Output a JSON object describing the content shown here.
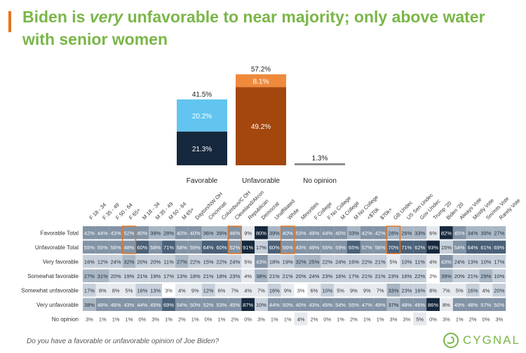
{
  "title": {
    "part1": "Biden is ",
    "emph": "very",
    "part2": " unfavorable to near majority; only above water with senior women"
  },
  "chart_data": [
    {
      "type": "bar",
      "stacked": true,
      "categories": [
        "Favorable",
        "Unfavorable",
        "No opinion"
      ],
      "totals": [
        "41.5%",
        "57.2%",
        "1.3%"
      ],
      "total_values": [
        41.5,
        57.2,
        1.3
      ],
      "segments": [
        [
          {
            "label": "21.3%",
            "value": 21.3,
            "color": "#16283d"
          },
          {
            "label": "20.2%",
            "value": 20.2,
            "color": "#62c5ef"
          }
        ],
        [
          {
            "label": "49.2%",
            "value": 49.2,
            "color": "#a3470e"
          },
          {
            "label": "8.1%",
            "value": 8.1,
            "color": "#ef8a3c"
          }
        ],
        [
          {
            "label": "",
            "value": 1.3,
            "color": "#8c8c8c"
          }
        ]
      ],
      "ylim": [
        0,
        60
      ]
    },
    {
      "type": "table",
      "columns": [
        "F 18 - 34",
        "F 35 - 49",
        "F 50 - 64",
        "F 65+",
        "M 18 - 34",
        "M 35 - 49",
        "M 50 - 64",
        "M 65+",
        "Dayton/NW OH",
        "Cincinnati",
        "Columbus/C OH",
        "Cleveland/Akron",
        "Republican",
        "Democrat",
        "Unaffiliated",
        "White",
        "Minorities",
        "F College",
        "F No College",
        "M College",
        "M No College",
        "<$70k",
        "$70k+",
        "GB Undec",
        "US Sen Undec",
        "Gov Undec",
        "Trump '20",
        "Biden '20",
        "Always Vote",
        "Mostly Vote",
        "Sm/mts Vote",
        "Rarely Vote"
      ],
      "rows": [
        {
          "label": "Favorable Total",
          "values": [
            42,
            44,
            43,
            52,
            40,
            39,
            28,
            40,
            40,
            36,
            39,
            46,
            9,
            80,
            39,
            40,
            53,
            49,
            44,
            40,
            33,
            42,
            42,
            28,
            26,
            33,
            6,
            82,
            45,
            34,
            39,
            27
          ]
        },
        {
          "label": "Unfavorable Total",
          "values": [
            55,
            55,
            56,
            48,
            60,
            58,
            71,
            58,
            59,
            64,
            60,
            52,
            91,
            17,
            60,
            56,
            43,
            49,
            55,
            59,
            65,
            57,
            56,
            70,
            71,
            62,
            93,
            15,
            54,
            64,
            61,
            69
          ]
        },
        {
          "label": "Very favorable",
          "values": [
            16,
            12,
            24,
            32,
            20,
            20,
            11,
            27,
            22,
            15,
            22,
            24,
            5,
            43,
            18,
            19,
            32,
            25,
            22,
            24,
            16,
            22,
            21,
            5,
            10,
            11,
            4,
            43,
            24,
            13,
            10,
            17
          ]
        },
        {
          "label": "Somewhat favorable",
          "values": [
            27,
            31,
            20,
            19,
            21,
            19,
            17,
            13,
            18,
            21,
            18,
            23,
            4,
            38,
            21,
            21,
            20,
            24,
            23,
            16,
            17,
            21,
            21,
            23,
            16,
            22,
            2,
            39,
            20,
            21,
            29,
            10
          ]
        },
        {
          "label": "Somewhat unfavorable",
          "values": [
            17,
            8,
            8,
            5,
            16,
            13,
            3,
            4,
            9,
            12,
            6,
            7,
            4,
            7,
            16,
            9,
            3,
            6,
            10,
            5,
            9,
            9,
            7,
            33,
            23,
            16,
            8,
            7,
            5,
            16,
            4,
            20
          ]
        },
        {
          "label": "Very unfavorable",
          "values": [
            38,
            48,
            48,
            43,
            44,
            45,
            69,
            54,
            50,
            52,
            53,
            45,
            87,
            10,
            44,
            50,
            40,
            43,
            45,
            54,
            55,
            47,
            49,
            37,
            48,
            46,
            86,
            8,
            49,
            48,
            57,
            50
          ]
        },
        {
          "label": "No opinion",
          "values": [
            3,
            1,
            1,
            1,
            0,
            3,
            1,
            2,
            1,
            0,
            1,
            2,
            0,
            3,
            1,
            1,
            4,
            2,
            0,
            1,
            2,
            1,
            1,
            3,
            3,
            5,
            0,
            3,
            1,
            2,
            0,
            3
          ]
        }
      ],
      "highlight_columns": [
        3,
        11,
        15,
        23
      ],
      "value_suffix": "%"
    }
  ],
  "colors": {
    "title_green": "#7ab648",
    "accent_orange": "#e8731c",
    "shade_dark": "#16283d",
    "shade_mid": "#4a6078",
    "shade_light": "#c7d0da",
    "highlight_border": "#e8731c"
  },
  "footer": {
    "question": "Do you have a favorable or unfavorable opinion of Joe Biden?",
    "logo_text": "CYGNAL",
    "logo_icon": "swan-icon"
  }
}
